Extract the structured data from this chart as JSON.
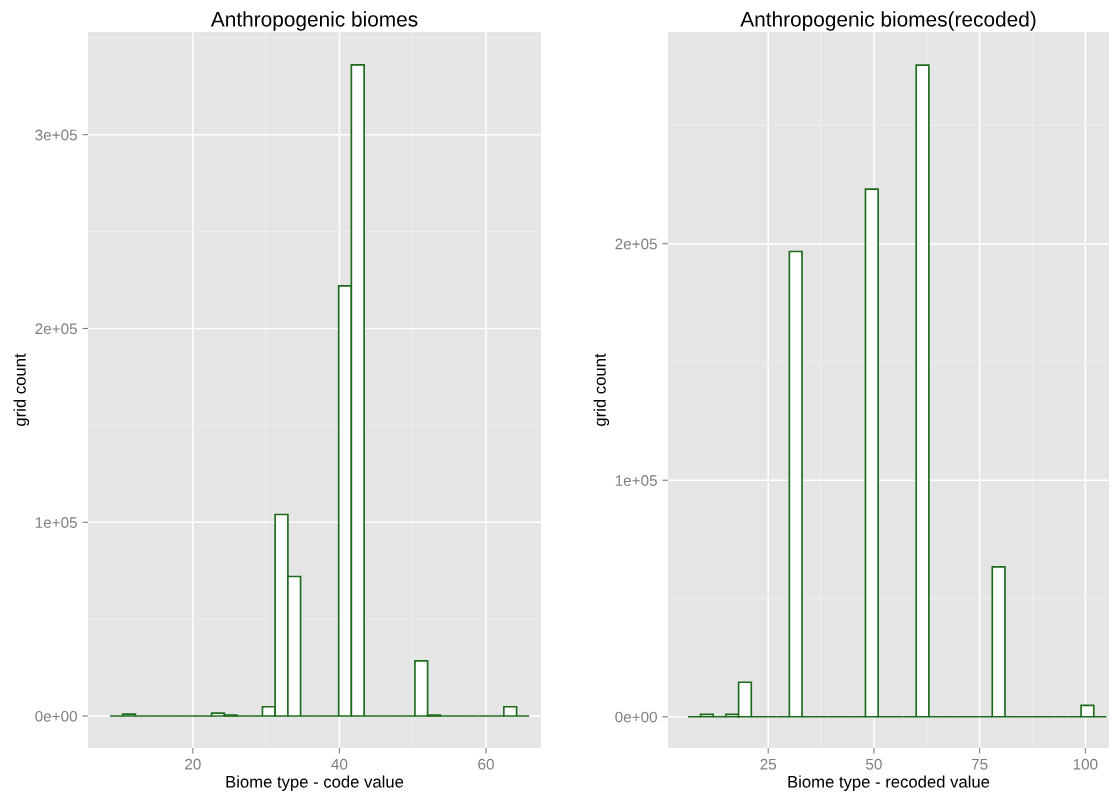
{
  "chart_data": [
    {
      "type": "histogram",
      "title": "Anthropogenic biomes",
      "xlabel": "Biome type - code value",
      "ylabel": "grid count",
      "color": "#1e6b1e",
      "bins": [
        8.7,
        10.43,
        12.17,
        13.9,
        15.63,
        17.37,
        19.1,
        20.83,
        22.57,
        24.3,
        26.03,
        27.77,
        29.5,
        31.23,
        32.97,
        34.7,
        36.43,
        38.17,
        39.9,
        41.63,
        43.37,
        45.1,
        46.83,
        48.57,
        50.3,
        52.03,
        53.77,
        55.5,
        57.23,
        58.97,
        60.7,
        62.43,
        64.17,
        65.9
      ],
      "values": [
        0,
        1000,
        0,
        0,
        0,
        0,
        0,
        0,
        1500,
        500,
        0,
        0,
        4800,
        104000,
        72000,
        0,
        0,
        0,
        222000,
        336000,
        0,
        0,
        0,
        0,
        28500,
        500,
        0,
        0,
        0,
        0,
        0,
        4800,
        0
      ],
      "xlim": [
        5.7,
        67.5
      ],
      "ylim": [
        -16500,
        353000
      ],
      "xticks": [
        20,
        40,
        60
      ],
      "yticks": [
        {
          "value": 0,
          "label": "0e+00"
        },
        {
          "value": 100000,
          "label": "1e+05"
        },
        {
          "value": 200000,
          "label": "2e+05"
        },
        {
          "value": 300000,
          "label": "3e+05"
        }
      ],
      "grid": true
    },
    {
      "type": "histogram",
      "title": "Anthropogenic biomes(recoded)",
      "xlabel": "Biome type - recoded value",
      "ylabel": "grid count",
      "color": "#1e6b1e",
      "bins": [
        6,
        9,
        12,
        15,
        18,
        21,
        24,
        27,
        30,
        33,
        36,
        39,
        42,
        45,
        48,
        51,
        54,
        57,
        60,
        63,
        66,
        69,
        72,
        75,
        78,
        81,
        84,
        87,
        90,
        93,
        96,
        99,
        102,
        105
      ],
      "values": [
        0,
        1000,
        0,
        1000,
        14600,
        0,
        0,
        0,
        196700,
        0,
        0,
        0,
        0,
        0,
        223100,
        0,
        0,
        0,
        275500,
        0,
        0,
        0,
        0,
        0,
        63400,
        0,
        0,
        0,
        0,
        0,
        0,
        4800,
        0
      ],
      "xlim": [
        1.3,
        105.6
      ],
      "ylim": [
        -13200,
        289500
      ],
      "xticks": [
        25,
        50,
        75,
        100
      ],
      "yticks": [
        {
          "value": 0,
          "label": "0e+00"
        },
        {
          "value": 100000,
          "label": "1e+05"
        },
        {
          "value": 200000,
          "label": "2e+05"
        }
      ],
      "grid": true
    }
  ]
}
